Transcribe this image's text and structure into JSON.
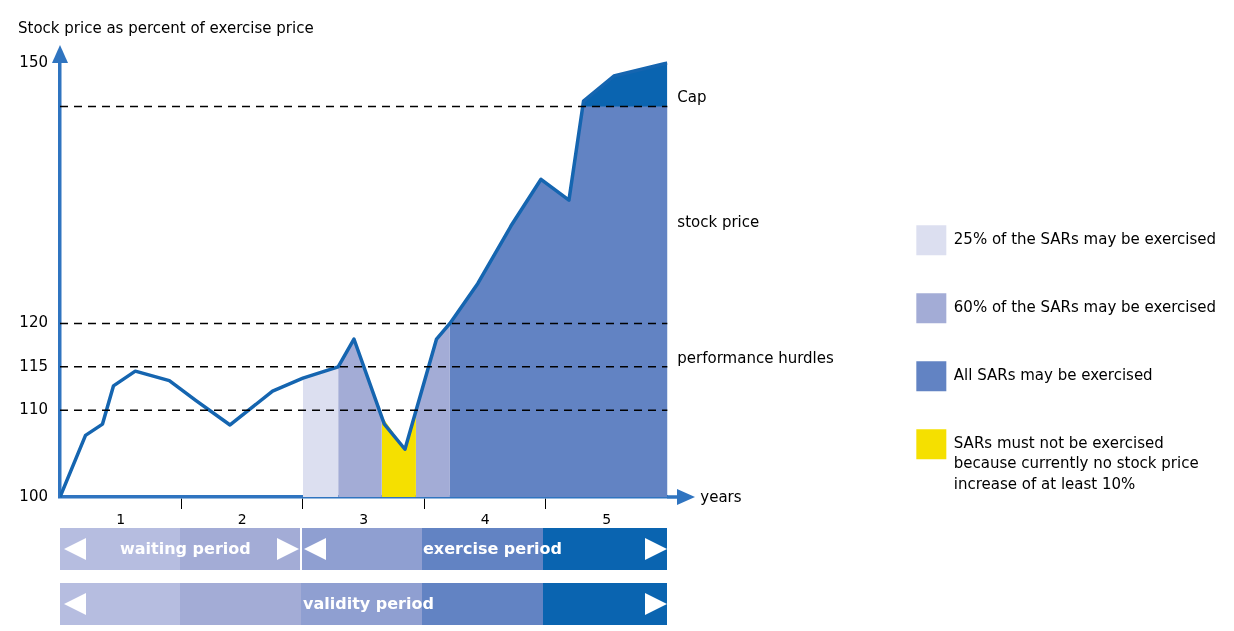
{
  "chart_data": {
    "type": "line",
    "xlabel": "years",
    "ylabel": "Stock price as percent of exercise price",
    "xlim": [
      0,
      5
    ],
    "xticks": [
      {
        "value": 0.5,
        "label": "1"
      },
      {
        "value": 1,
        "label": null
      },
      {
        "value": 1.5,
        "label": "2"
      },
      {
        "value": 2,
        "label": null
      },
      {
        "value": 2.5,
        "label": "3"
      },
      {
        "value": 3,
        "label": null
      },
      {
        "value": 3.5,
        "label": "4"
      },
      {
        "value": 4,
        "label": null
      },
      {
        "value": 4.5,
        "label": "5"
      }
    ],
    "ylim": [
      100,
      150
    ],
    "yticks": [
      100,
      110,
      115,
      120,
      150
    ],
    "series": [
      {
        "type": "area",
        "color": "#0a64b0",
        "x": [
          4.3,
          4.31,
          4.56,
          5
        ],
        "values": [
          145,
          145.6,
          148.5,
          150
        ]
      },
      {
        "type": "area",
        "name": "25% of the SARs may be exercised",
        "color": "#dcdff0",
        "x": [
          2.0,
          2.29
        ],
        "values": [
          113.7,
          115
        ]
      },
      {
        "type": "area",
        "name": "60% of the SARs may be exercised",
        "color": "#a3acd6",
        "x": [
          2.29,
          2.42,
          2.65,
          2.8,
          2.93,
          3.1,
          3.21
        ],
        "values": [
          115,
          118.2,
          109.3,
          null,
          109.6,
          118.2,
          120
        ]
      },
      {
        "type": "area",
        "name": "All SARs may be exercised",
        "color": "#6283c3",
        "x": [
          3.21,
          3.44,
          3.72,
          3.96,
          4.19,
          4.3,
          5
        ],
        "values": [
          120,
          124.6,
          131.4,
          136.6,
          134.2,
          145,
          145
        ]
      },
      {
        "type": "area",
        "name": "SARs must not be exercised because currently no stock price increase of at least 10%",
        "color": "#f5e000",
        "x": [
          2.65,
          2.84,
          2.93
        ],
        "values": [
          109.3,
          105.5,
          109.6
        ]
      },
      {
        "type": "line",
        "color": "#1565b0",
        "x": [
          0,
          0.21,
          0.35,
          0.44,
          0.62,
          0.9,
          1.12,
          1.4,
          1.75,
          2.0,
          2.29,
          2.42,
          2.67,
          2.84,
          3.1,
          3.21,
          3.44,
          3.72,
          3.96,
          4.19,
          4.31,
          4.56,
          5
        ],
        "values": [
          100,
          107.1,
          108.4,
          112.8,
          114.5,
          113.4,
          111.1,
          108.3,
          112.2,
          113.7,
          115,
          118.2,
          108.4,
          105.5,
          118.2,
          120,
          124.6,
          131.4,
          136.6,
          134.2,
          145.6,
          148.5,
          150
        ]
      }
    ],
    "ref_lines": [
      {
        "axis": "y",
        "value": 145,
        "label": "Cap",
        "color": "#000000",
        "line_style": "dashed"
      },
      {
        "axis": "y",
        "value": 120,
        "label": null,
        "color": "#000000",
        "line_style": "dashed"
      },
      {
        "axis": "y",
        "value": 115,
        "label": "performance hurdles",
        "color": "#000000",
        "line_style": "dashed"
      },
      {
        "axis": "y",
        "value": 110,
        "label": null,
        "color": "#000000",
        "line_style": "dashed"
      }
    ],
    "annotations": [
      "stock price",
      "waiting period",
      "exercise period",
      "validity period"
    ],
    "marker": "none",
    "grid": false,
    "legend": "right"
  }
}
